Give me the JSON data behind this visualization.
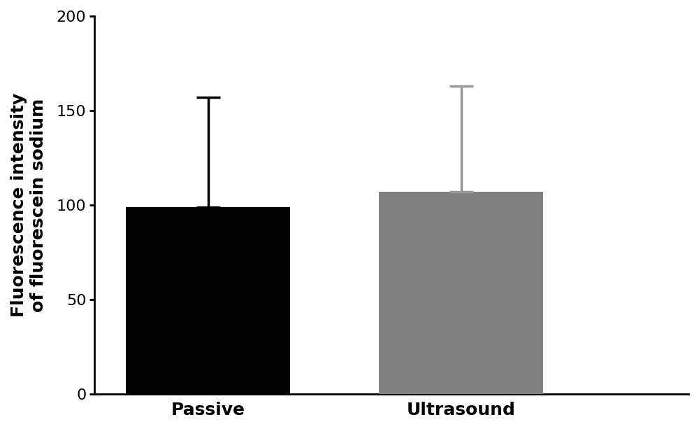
{
  "categories": [
    "Passive",
    "Ultrasound"
  ],
  "values": [
    99,
    107
  ],
  "error_upper": [
    58,
    56
  ],
  "bar_colors": [
    "#000000",
    "#808080"
  ],
  "error_colors": [
    "#000000",
    "#999999"
  ],
  "ylabel": "Fluorescence intensity\nof fluorescein sodium",
  "ylim": [
    0,
    200
  ],
  "yticks": [
    0,
    50,
    100,
    150,
    200
  ],
  "bar_width": 0.65,
  "figsize": [
    10.0,
    6.13
  ],
  "dpi": 100,
  "background_color": "#ffffff",
  "xlabel_fontsize": 18,
  "ylabel_fontsize": 18,
  "tick_fontsize": 16,
  "label_fontweight": "bold",
  "error_capsize": 12,
  "error_linewidth": 2.5,
  "error_capthick": 2.5
}
